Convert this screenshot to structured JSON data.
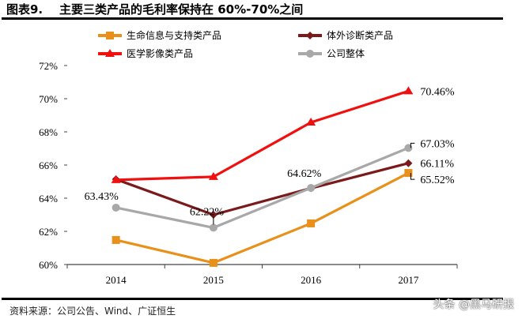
{
  "header": {
    "title": "图表9.    主要三类产品的毛利率保持在 60%-70%之间"
  },
  "footer": {
    "source": "资料来源：公司公告、Wind、广证恒生",
    "watermark": "头条 @黑马研报"
  },
  "chart_data": {
    "type": "line",
    "title": "",
    "xlabel": "",
    "ylabel": "",
    "categories": [
      "2014",
      "2015",
      "2016",
      "2017"
    ],
    "ylim": [
      60,
      72
    ],
    "yticks": [
      60,
      62,
      64,
      66,
      68,
      70,
      72
    ],
    "ytick_labels": [
      "60%",
      "62%",
      "64%",
      "66%",
      "68%",
      "70%",
      "72%"
    ],
    "grid": false,
    "legend_position": "top",
    "series": [
      {
        "name": "生命信息与支持类产品",
        "color": "#E8901A",
        "marker": "square",
        "values": [
          61.48,
          60.1,
          62.48,
          65.52
        ],
        "labels": [
          "",
          "",
          "",
          "65.52%"
        ]
      },
      {
        "name": "体外诊断类产品",
        "color": "#7B1A1A",
        "marker": "diamond",
        "values": [
          65.14,
          63.0,
          64.6,
          66.11
        ],
        "labels": [
          "",
          "",
          "",
          "66.11%"
        ]
      },
      {
        "name": "医学影像类产品",
        "color": "#F01010",
        "marker": "triangle",
        "values": [
          65.1,
          65.29,
          68.57,
          70.46
        ],
        "labels": [
          "",
          "",
          "",
          "70.46%"
        ]
      },
      {
        "name": "公司整体",
        "color": "#A8A8A8",
        "marker": "circle",
        "values": [
          63.43,
          62.22,
          64.62,
          67.03
        ],
        "labels": [
          "63.43%",
          "62.22%",
          "64.62%",
          "67.03%"
        ]
      }
    ]
  }
}
